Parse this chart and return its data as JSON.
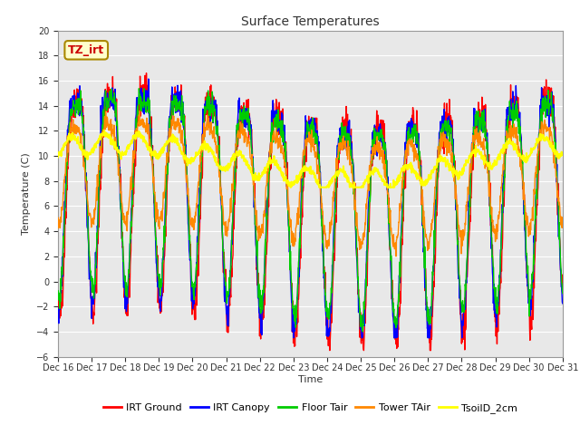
{
  "title": "Surface Temperatures",
  "xlabel": "Time",
  "ylabel": "Temperature (C)",
  "ylim": [
    -6,
    20
  ],
  "yticks": [
    -6,
    -4,
    -2,
    0,
    2,
    4,
    6,
    8,
    10,
    12,
    14,
    16,
    18,
    20
  ],
  "n_points": 1440,
  "annotation_text": "TZ_irt",
  "annotation_color": "#cc0000",
  "annotation_bg": "#ffffcc",
  "annotation_border": "#aa8800",
  "plot_bg": "#e8e8e8",
  "fig_bg": "#ffffff",
  "series_colors": [
    "#ff0000",
    "#0000ff",
    "#00cc00",
    "#ff8800",
    "#ffff00"
  ],
  "series_lw": [
    1.0,
    1.0,
    1.0,
    1.0,
    1.5
  ],
  "legend_labels": [
    "IRT Ground",
    "IRT Canopy",
    "Floor Tair",
    "Tower TAir",
    "TsoilD_2cm"
  ],
  "xtick_labels": [
    "Dec 16",
    "Dec 17",
    "Dec 18",
    "Dec 19",
    "Dec 20",
    "Dec 21",
    "Dec 22",
    "Dec 23",
    "Dec 24",
    "Dec 25",
    "Dec 26",
    "Dec 27",
    "Dec 28",
    "Dec 29",
    "Dec 30",
    "Dec 31"
  ],
  "grid_color": "#ffffff",
  "spine_color": "#999999",
  "tick_color": "#333333",
  "title_fontsize": 10,
  "label_fontsize": 8,
  "tick_fontsize": 7,
  "legend_fontsize": 8
}
